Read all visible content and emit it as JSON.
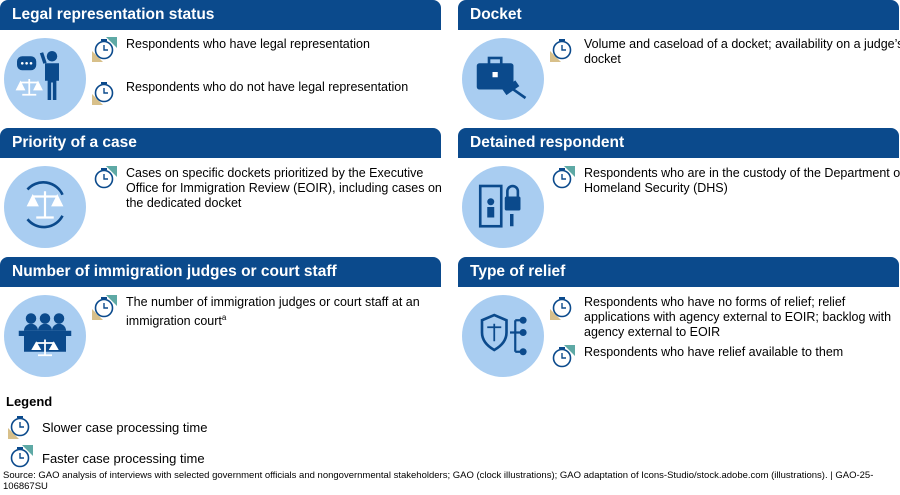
{
  "colors": {
    "header": "#0b4a8c",
    "circle": "#a9cdf1",
    "icon": "#0b4a8c",
    "faster": "#5ea9a5",
    "slower": "#d8c08a"
  },
  "panels": [
    {
      "title": "Legal representation status",
      "icon": "lawyer-speech-scales",
      "items": [
        {
          "text": "Respondents who have legal representation",
          "faster": true,
          "slower": true
        },
        {
          "text": "Respondents who do not have legal representation",
          "faster": false,
          "slower": true
        }
      ]
    },
    {
      "title": "Docket",
      "icon": "briefcase-gavel",
      "items": [
        {
          "text": "Volume and caseload of a docket; availability on a judge’s docket",
          "faster": false,
          "slower": true
        }
      ]
    },
    {
      "title": "Priority of a case",
      "icon": "scales-cycle",
      "items": [
        {
          "text": "Cases on specific dockets prioritized by the Executive Office for Immigration Review (EOIR), including cases on the dedicated docket",
          "faster": true,
          "slower": false
        }
      ]
    },
    {
      "title": "Detained respondent",
      "icon": "person-lock",
      "items": [
        {
          "text": "Respondents who are in the custody of the Department of Homeland Security (DHS)",
          "faster": true,
          "slower": false
        }
      ]
    },
    {
      "title": "Number of immigration judges or court staff",
      "icon": "judges-bench",
      "items": [
        {
          "text": "The number of immigration judges or court staff at an immigration court",
          "sup": "a",
          "faster": true,
          "slower": true
        }
      ]
    },
    {
      "title": "Type of relief",
      "icon": "shield-scales-network",
      "items": [
        {
          "text": "Respondents who have no forms of relief; relief applications with agency external to EOIR; backlog with agency external to EOIR",
          "faster": false,
          "slower": true
        },
        {
          "text": "Respondents who have relief available to them",
          "faster": true,
          "slower": false
        }
      ]
    }
  ],
  "legend": {
    "title": "Legend",
    "slower": "Slower case processing time",
    "faster": "Faster case processing time"
  },
  "source": "Source: GAO analysis of interviews with selected government officials and nongovernmental stakeholders; GAO (clock illustrations); GAO adaptation of Icons-Studio/stock.adobe.com (illustrations).  |  GAO-25-106867SU"
}
